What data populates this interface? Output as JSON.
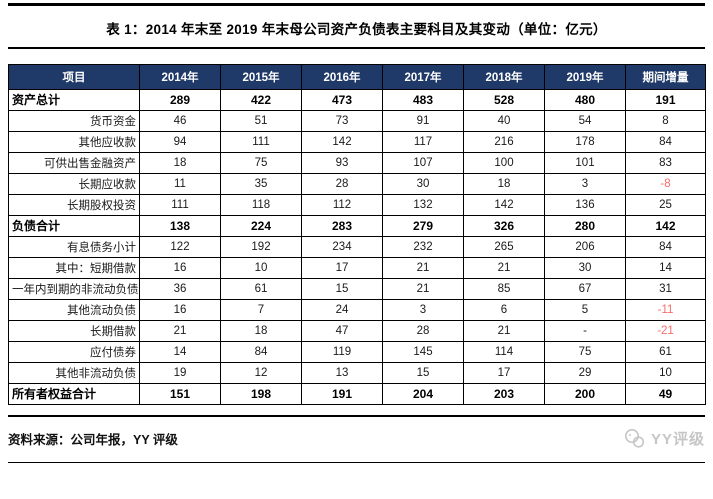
{
  "title": "表 1：2014 年末至 2019 年末母公司资产负债表主要科目及其变动（单位：亿元）",
  "table": {
    "columns": [
      "项目",
      "2014年",
      "2015年",
      "2016年",
      "2017年",
      "2018年",
      "2019年",
      "期间增量"
    ],
    "rows": [
      {
        "label": "资产总计",
        "section": true,
        "values": [
          "289",
          "422",
          "473",
          "483",
          "528",
          "480",
          "191"
        ]
      },
      {
        "label": "货币资金",
        "section": false,
        "values": [
          "46",
          "51",
          "73",
          "91",
          "40",
          "54",
          "8"
        ]
      },
      {
        "label": "其他应收款",
        "section": false,
        "values": [
          "94",
          "111",
          "142",
          "117",
          "216",
          "178",
          "84"
        ]
      },
      {
        "label": "可供出售金融资产",
        "section": false,
        "values": [
          "18",
          "75",
          "93",
          "107",
          "100",
          "101",
          "83"
        ]
      },
      {
        "label": "长期应收款",
        "section": false,
        "values": [
          "11",
          "35",
          "28",
          "30",
          "18",
          "3",
          "-8"
        ]
      },
      {
        "label": "长期股权投资",
        "section": false,
        "values": [
          "111",
          "118",
          "112",
          "132",
          "142",
          "136",
          "25"
        ]
      },
      {
        "label": "负债合计",
        "section": true,
        "values": [
          "138",
          "224",
          "283",
          "279",
          "326",
          "280",
          "142"
        ]
      },
      {
        "label": "有息债务小计",
        "section": false,
        "values": [
          "122",
          "192",
          "234",
          "232",
          "265",
          "206",
          "84"
        ]
      },
      {
        "label": "其中：短期借款",
        "section": false,
        "values": [
          "16",
          "10",
          "17",
          "21",
          "21",
          "30",
          "14"
        ]
      },
      {
        "label": "一年内到期的非流动负债",
        "section": false,
        "values": [
          "36",
          "61",
          "15",
          "21",
          "85",
          "67",
          "31"
        ]
      },
      {
        "label": "其他流动负债",
        "section": false,
        "values": [
          "16",
          "7",
          "24",
          "3",
          "6",
          "5",
          "-11"
        ]
      },
      {
        "label": "长期借款",
        "section": false,
        "values": [
          "21",
          "18",
          "47",
          "28",
          "21",
          "-",
          "-21"
        ]
      },
      {
        "label": "应付债券",
        "section": false,
        "values": [
          "14",
          "84",
          "119",
          "145",
          "114",
          "75",
          "61"
        ]
      },
      {
        "label": "其他非流动负债",
        "section": false,
        "values": [
          "19",
          "12",
          "13",
          "15",
          "17",
          "29",
          "10"
        ]
      },
      {
        "label": "所有者权益合计",
        "section": true,
        "values": [
          "151",
          "198",
          "191",
          "204",
          "203",
          "200",
          "49"
        ]
      }
    ]
  },
  "footer": {
    "source": "资料来源：公司年报，YY 评级",
    "watermark": "YY评级"
  },
  "colors": {
    "header_bg": "#1f3a68",
    "negative": "#f96b6b",
    "watermark": "#c6c6c6"
  }
}
